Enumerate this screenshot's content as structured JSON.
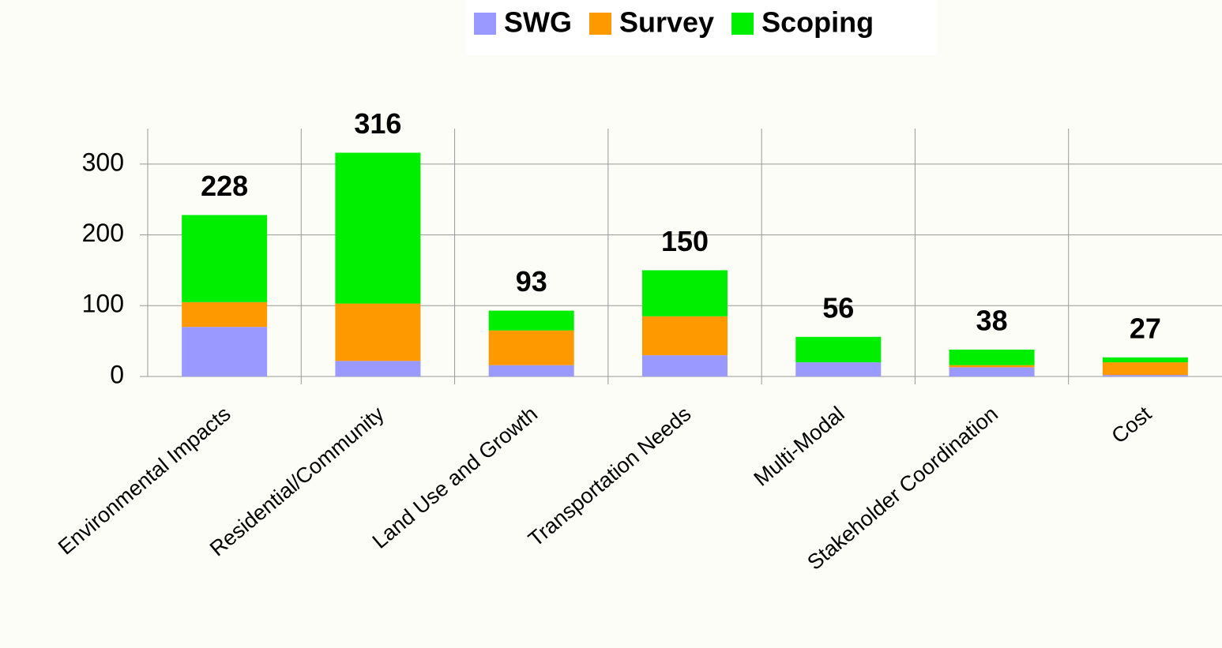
{
  "chart_data": {
    "type": "stacked_bar",
    "categories": [
      "Environmental Impacts",
      "Residential/Community",
      "Land Use and Growth",
      "Transportation Needs",
      "Multi-Modal",
      "Stakeholder Coordination",
      "Cost"
    ],
    "series": [
      {
        "name": "SWG",
        "color": "#9999ff",
        "values": [
          70,
          22,
          16,
          30,
          20,
          13,
          2
        ]
      },
      {
        "name": "Survey",
        "color": "#ff9900",
        "values": [
          35,
          81,
          49,
          55,
          0,
          3,
          18
        ]
      },
      {
        "name": "Scoping",
        "color": "#00ee00",
        "values": [
          123,
          213,
          28,
          65,
          36,
          22,
          7
        ]
      }
    ],
    "totals": [
      228,
      316,
      93,
      150,
      56,
      38,
      27
    ],
    "ylim": [
      0,
      350
    ],
    "yticks": [
      0,
      100,
      200,
      300
    ],
    "grid": true
  }
}
